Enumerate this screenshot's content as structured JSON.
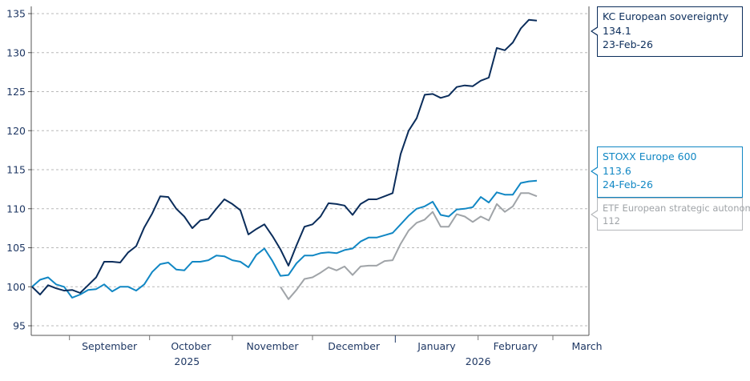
{
  "chart_data": {
    "type": "line",
    "title": "",
    "xlabel": "",
    "ylabel": "",
    "ylim": [
      95,
      135
    ],
    "yticks": [
      95,
      100,
      105,
      110,
      115,
      120,
      125,
      130,
      135
    ],
    "grid": "horizontal dashed",
    "x_tick_labels": [
      {
        "label": "September",
        "start": "2025-09-01",
        "end": "2025-10-01"
      },
      {
        "label": "October",
        "start": "2025-10-01",
        "end": "2025-11-01"
      },
      {
        "label": "November",
        "start": "2025-11-01",
        "end": "2025-12-01"
      },
      {
        "label": "December",
        "start": "2025-12-01",
        "end": "2026-01-01"
      },
      {
        "label": "January",
        "start": "2026-01-01",
        "end": "2026-02-01"
      },
      {
        "label": "February",
        "start": "2026-02-01",
        "end": "2026-03-01"
      },
      {
        "label": "March",
        "start": "2026-03-01",
        "end": "2026-04-01"
      }
    ],
    "x_year_labels": [
      {
        "label": "2025",
        "center": "2025-10-15"
      },
      {
        "label": "2026",
        "center": "2026-02-01"
      }
    ],
    "x_range": [
      "2025-08-18",
      "2026-03-01"
    ],
    "dates": [
      "2025-08-18",
      "2025-08-21",
      "2025-08-24",
      "2025-08-27",
      "2025-08-30",
      "2025-09-02",
      "2025-09-05",
      "2025-09-08",
      "2025-09-11",
      "2025-09-14",
      "2025-09-17",
      "2025-09-20",
      "2025-09-23",
      "2025-09-26",
      "2025-09-29",
      "2025-10-02",
      "2025-10-05",
      "2025-10-08",
      "2025-10-11",
      "2025-10-14",
      "2025-10-17",
      "2025-10-20",
      "2025-10-23",
      "2025-10-26",
      "2025-10-29",
      "2025-11-01",
      "2025-11-04",
      "2025-11-07",
      "2025-11-10",
      "2025-11-13",
      "2025-11-16",
      "2025-11-19",
      "2025-11-22",
      "2025-11-25",
      "2025-11-28",
      "2025-12-01",
      "2025-12-04",
      "2025-12-07",
      "2025-12-10",
      "2025-12-13",
      "2025-12-16",
      "2025-12-19",
      "2025-12-22",
      "2025-12-25",
      "2025-12-28",
      "2025-12-31",
      "2026-01-03",
      "2026-01-06",
      "2026-01-09",
      "2026-01-12",
      "2026-01-15",
      "2026-01-18",
      "2026-01-21",
      "2026-01-24",
      "2026-01-27",
      "2026-01-30",
      "2026-02-02",
      "2026-02-05",
      "2026-02-08",
      "2026-02-11",
      "2026-02-14",
      "2026-02-17",
      "2026-02-20",
      "2026-02-23"
    ],
    "series": [
      {
        "name": "KC European sovereignty",
        "color": "#0b2d5b",
        "values": [
          100,
          99.0,
          100.2,
          99.8,
          99.5,
          99.6,
          99.2,
          100.2,
          101.2,
          103.2,
          103.2,
          103.1,
          104.4,
          105.2,
          107.6,
          109.4,
          111.6,
          111.5,
          110.0,
          109.0,
          107.5,
          108.5,
          108.7,
          110.0,
          111.2,
          110.6,
          109.8,
          106.7,
          107.4,
          108.0,
          106.5,
          104.8,
          102.7,
          105.3,
          107.7,
          108.0,
          109.0,
          110.7,
          110.6,
          110.4,
          109.2,
          110.6,
          111.2,
          111.2,
          111.6,
          112.0,
          117.0,
          120.0,
          121.6,
          124.6,
          124.7,
          124.2,
          124.5,
          125.6,
          125.8,
          125.7,
          126.4,
          126.8,
          130.6,
          130.3,
          131.3,
          133.1,
          134.2,
          134.1
        ]
      },
      {
        "name": "STOXX Europe 600",
        "color": "#1187c4",
        "values": [
          100,
          100.9,
          101.2,
          100.3,
          100.0,
          98.6,
          99.0,
          99.6,
          99.7,
          100.3,
          99.4,
          100.0,
          100.0,
          99.5,
          100.3,
          101.9,
          102.9,
          103.1,
          102.2,
          102.1,
          103.2,
          103.2,
          103.4,
          104.0,
          103.9,
          103.4,
          103.2,
          102.5,
          104.1,
          104.9,
          103.3,
          101.4,
          101.5,
          103.0,
          104.0,
          104.0,
          104.3,
          104.4,
          104.3,
          104.7,
          104.9,
          105.8,
          106.3,
          106.3,
          106.6,
          106.9,
          108.0,
          109.1,
          110.0,
          110.3,
          110.9,
          109.2,
          109.0,
          109.9,
          110.0,
          110.2,
          111.5,
          110.8,
          112.1,
          111.8,
          111.8,
          113.3,
          113.5,
          113.6
        ]
      },
      {
        "name": "ETF European strategic autonomy",
        "color": "#a0a4a8",
        "values": [
          null,
          null,
          null,
          null,
          null,
          null,
          null,
          null,
          null,
          null,
          null,
          null,
          null,
          null,
          null,
          null,
          null,
          null,
          null,
          null,
          null,
          null,
          null,
          null,
          null,
          null,
          null,
          null,
          null,
          null,
          null,
          100,
          98.4,
          99.6,
          101.0,
          101.2,
          101.8,
          102.5,
          102.1,
          102.6,
          101.5,
          102.6,
          102.7,
          102.7,
          103.3,
          103.4,
          105.5,
          107.2,
          108.2,
          108.6,
          109.6,
          107.7,
          107.7,
          109.3,
          109.0,
          108.3,
          109.0,
          108.5,
          110.6,
          109.6,
          110.3,
          112.0,
          112.0,
          111.6
        ]
      }
    ],
    "callouts": [
      {
        "name": "KC European sovereignty",
        "value": "134.1",
        "date": "23-Feb-26"
      },
      {
        "name": "STOXX Europe 600",
        "value": "113.6",
        "date": "24-Feb-26"
      },
      {
        "name": "ETF European strategic autonomy",
        "value": "112"
      }
    ],
    "axis_color": "#1f3864",
    "grid_color": "#b8b8b8"
  }
}
